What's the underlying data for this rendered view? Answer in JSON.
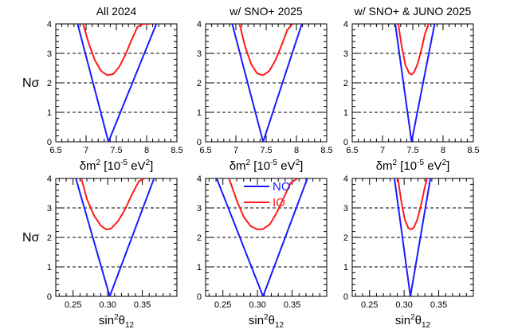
{
  "figure": {
    "ylabel": "Nσ",
    "legend": [
      {
        "name": "NO",
        "color": "#1a1aff"
      },
      {
        "name": "IO",
        "color": "#ff1a1a"
      }
    ]
  },
  "chart_data": [
    {
      "type": "line",
      "title": "All 2024",
      "xlabel_main": "δm",
      "xlabel_sup": "2",
      "xlabel_units": " [10",
      "xlabel_exp": "-5",
      "xlabel_tail": " eV",
      "xlabel_sup2": "2",
      "xlabel_close": "]",
      "xlim": [
        6.5,
        8.5
      ],
      "ylim": [
        0,
        4
      ],
      "xticks": [
        6.5,
        7.0,
        7.5,
        8.0,
        8.5
      ],
      "xtick_labels": [
        "6.5",
        "7",
        "7.5",
        "8",
        "8.5"
      ],
      "yticks": [
        0,
        1,
        2,
        3,
        4
      ],
      "ytick_labels": [
        "0",
        "1",
        "2",
        "3",
        "4"
      ],
      "grid": "dashed horizontal at 1, 2, 3",
      "series": [
        {
          "name": "NO",
          "color": "#1a1aff",
          "x": [
            6.86,
            7.37,
            8.16
          ],
          "y": [
            4.0,
            0.0,
            4.0
          ]
        },
        {
          "name": "IO",
          "color": "#ff1a1a",
          "x": [
            6.95,
            7.05,
            7.15,
            7.25,
            7.35,
            7.45,
            7.55,
            7.65,
            7.75,
            7.85,
            7.95,
            8.06
          ],
          "y": [
            4.0,
            3.3,
            2.75,
            2.4,
            2.26,
            2.3,
            2.55,
            2.95,
            3.45,
            3.9,
            4.0,
            4.0
          ]
        }
      ]
    },
    {
      "type": "line",
      "title": "w/ SNO+ 2025",
      "xlabel_main": "δm",
      "xlabel_sup": "2",
      "xlabel_units": " [10",
      "xlabel_exp": "-5",
      "xlabel_tail": " eV",
      "xlabel_sup2": "2",
      "xlabel_close": "]",
      "xlim": [
        6.5,
        8.5
      ],
      "ylim": [
        0,
        4
      ],
      "xticks": [
        6.5,
        7.0,
        7.5,
        8.0,
        8.5
      ],
      "xtick_labels": [
        "6.5",
        "7",
        "7.5",
        "8",
        "8.5"
      ],
      "yticks": [
        0,
        1,
        2,
        3,
        4
      ],
      "ytick_labels": [
        "0",
        "1",
        "2",
        "3",
        "4"
      ],
      "grid": "dashed horizontal at 1, 2, 3",
      "series": [
        {
          "name": "NO",
          "color": "#1a1aff",
          "x": [
            6.94,
            7.45,
            8.09
          ],
          "y": [
            4.0,
            0.0,
            4.0
          ]
        },
        {
          "name": "IO",
          "color": "#ff1a1a",
          "x": [
            7.06,
            7.15,
            7.25,
            7.35,
            7.45,
            7.55,
            7.65,
            7.75,
            7.85,
            7.94
          ],
          "y": [
            4.0,
            3.25,
            2.65,
            2.32,
            2.26,
            2.4,
            2.75,
            3.25,
            3.8,
            4.0
          ]
        }
      ]
    },
    {
      "type": "line",
      "title": "w/ SNO+ & JUNO 2025",
      "xlabel_main": "δm",
      "xlabel_sup": "2",
      "xlabel_units": " [10",
      "xlabel_exp": "-5",
      "xlabel_tail": " eV",
      "xlabel_sup2": "2",
      "xlabel_close": "]",
      "xlim": [
        6.5,
        8.5
      ],
      "ylim": [
        0,
        4
      ],
      "xticks": [
        6.5,
        7.0,
        7.5,
        8.0,
        8.5
      ],
      "xtick_labels": [
        "6.5",
        "7",
        "7.5",
        "8",
        "8.5"
      ],
      "yticks": [
        0,
        1,
        2,
        3,
        4
      ],
      "ytick_labels": [
        "0",
        "1",
        "2",
        "3",
        "4"
      ],
      "grid": "dashed horizontal at 1, 2, 3",
      "series": [
        {
          "name": "NO",
          "color": "#1a1aff",
          "x": [
            7.21,
            7.48,
            7.86
          ],
          "y": [
            4.0,
            0.0,
            4.0
          ]
        },
        {
          "name": "IO",
          "color": "#ff1a1a",
          "x": [
            7.26,
            7.32,
            7.38,
            7.44,
            7.48,
            7.52,
            7.58,
            7.64,
            7.7,
            7.76
          ],
          "y": [
            4.0,
            3.2,
            2.6,
            2.33,
            2.28,
            2.35,
            2.65,
            3.1,
            3.65,
            4.0
          ]
        }
      ]
    },
    {
      "type": "line",
      "title": "",
      "xlabel_main": "sin",
      "xlabel_sup": "2",
      "xlabel_units": "θ",
      "xlabel_exp": "",
      "xlabel_tail": "",
      "xlabel_sub": "12",
      "xlabel_sup2": "",
      "xlabel_close": "",
      "xlim": [
        0.225,
        0.4
      ],
      "ylim": [
        0,
        4
      ],
      "xticks": [
        0.25,
        0.3,
        0.35
      ],
      "xtick_labels": [
        "0.25",
        "0.30",
        "0.35"
      ],
      "yticks": [
        0,
        1,
        2,
        3,
        4
      ],
      "ytick_labels": [
        "0",
        "1",
        "2",
        "3",
        "4"
      ],
      "grid": "dashed horizontal at 1, 2, 3",
      "series": [
        {
          "name": "NO",
          "color": "#1a1aff",
          "x": [
            0.254,
            0.303,
            0.367
          ],
          "y": [
            4.0,
            0.0,
            4.0
          ]
        },
        {
          "name": "IO",
          "color": "#ff1a1a",
          "x": [
            0.262,
            0.27,
            0.28,
            0.29,
            0.298,
            0.305,
            0.315,
            0.325,
            0.335,
            0.345,
            0.353
          ],
          "y": [
            4.0,
            3.3,
            2.75,
            2.4,
            2.27,
            2.3,
            2.55,
            2.95,
            3.45,
            3.9,
            4.0
          ]
        }
      ]
    },
    {
      "type": "line",
      "title": "",
      "xlabel_main": "sin",
      "xlabel_sup": "2",
      "xlabel_units": "θ",
      "xlabel_exp": "",
      "xlabel_tail": "",
      "xlabel_sub": "12",
      "xlabel_sup2": "",
      "xlabel_close": "",
      "xlim": [
        0.225,
        0.4
      ],
      "ylim": [
        0,
        4
      ],
      "xticks": [
        0.25,
        0.3,
        0.35
      ],
      "xtick_labels": [
        "0.25",
        "0.30",
        "0.35"
      ],
      "yticks": [
        0,
        1,
        2,
        3,
        4
      ],
      "ytick_labels": [
        "0",
        "1",
        "2",
        "3",
        "4"
      ],
      "grid": "dashed horizontal at 1, 2, 3",
      "series": [
        {
          "name": "NO",
          "color": "#1a1aff",
          "x": [
            0.241,
            0.308,
            0.372
          ],
          "y": [
            4.0,
            0.0,
            4.0
          ]
        },
        {
          "name": "IO",
          "color": "#ff1a1a",
          "x": [
            0.259,
            0.27,
            0.28,
            0.29,
            0.3,
            0.308,
            0.318,
            0.328,
            0.338,
            0.348,
            0.358
          ],
          "y": [
            4.0,
            3.25,
            2.7,
            2.38,
            2.27,
            2.28,
            2.45,
            2.85,
            3.35,
            3.85,
            4.0
          ]
        }
      ]
    },
    {
      "type": "line",
      "title": "",
      "xlabel_main": "sin",
      "xlabel_sup": "2",
      "xlabel_units": "θ",
      "xlabel_exp": "",
      "xlabel_tail": "",
      "xlabel_sub": "12",
      "xlabel_sup2": "",
      "xlabel_close": "",
      "xlim": [
        0.225,
        0.4
      ],
      "ylim": [
        0,
        4
      ],
      "xticks": [
        0.25,
        0.3,
        0.35
      ],
      "xtick_labels": [
        "0.25",
        "0.30",
        "0.35"
      ],
      "yticks": [
        0,
        1,
        2,
        3,
        4
      ],
      "ytick_labels": [
        "0",
        "1",
        "2",
        "3",
        "4"
      ],
      "grid": "dashed horizontal at 1, 2, 3",
      "series": [
        {
          "name": "NO",
          "color": "#1a1aff",
          "x": [
            0.286,
            0.309,
            0.338
          ],
          "y": [
            4.0,
            0.0,
            4.0
          ]
        },
        {
          "name": "IO",
          "color": "#ff1a1a",
          "x": [
            0.291,
            0.296,
            0.301,
            0.306,
            0.31,
            0.314,
            0.319,
            0.324,
            0.329,
            0.333
          ],
          "y": [
            4.0,
            3.2,
            2.6,
            2.32,
            2.27,
            2.33,
            2.6,
            3.05,
            3.6,
            4.0
          ]
        }
      ]
    }
  ]
}
